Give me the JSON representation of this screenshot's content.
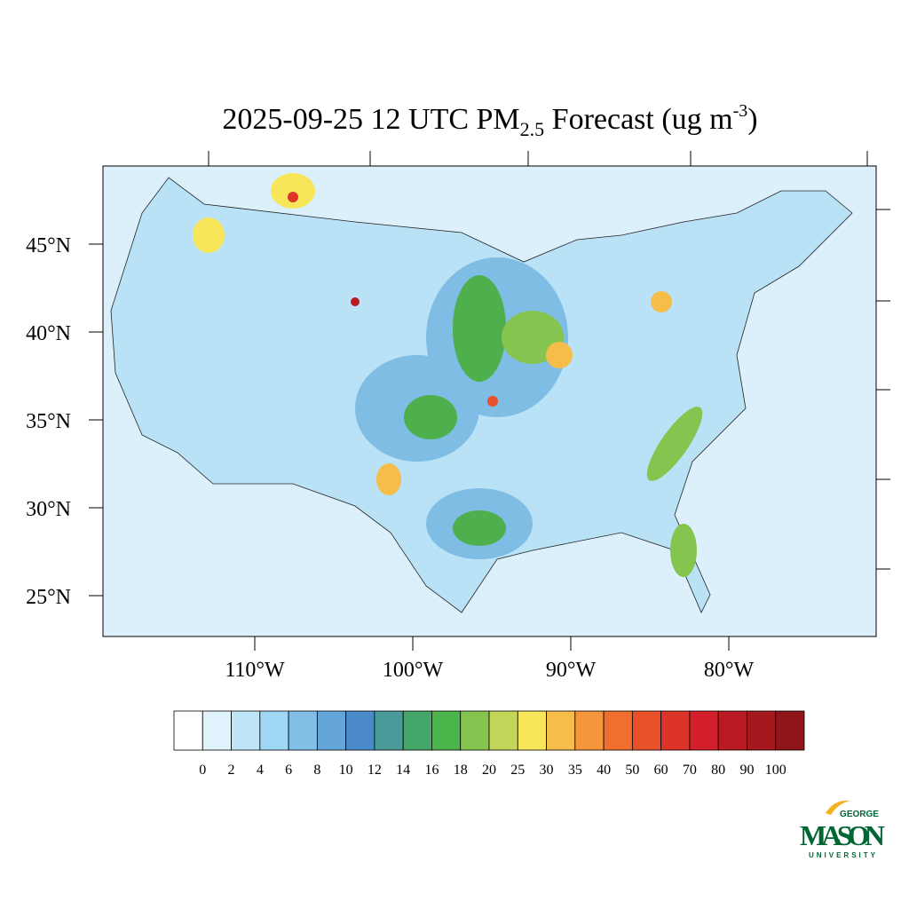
{
  "title_parts": [
    "2025-09-25 12 UTC PM",
    "2.5",
    " Forecast (ug m",
    "-3",
    ")"
  ],
  "lat_ticks": [
    {
      "value": 45,
      "label": "45°N"
    },
    {
      "value": 40,
      "label": "40°N"
    },
    {
      "value": 35,
      "label": "35°N"
    },
    {
      "value": 30,
      "label": "30°N"
    },
    {
      "value": 25,
      "label": "25°N"
    }
  ],
  "lon_ticks": [
    {
      "value": -110,
      "label": "110°W"
    },
    {
      "value": -100,
      "label": "100°W"
    },
    {
      "value": -90,
      "label": "90°W"
    },
    {
      "value": -80,
      "label": "80°W"
    }
  ],
  "colorbar": {
    "levels": [
      0,
      2,
      4,
      6,
      8,
      10,
      12,
      14,
      16,
      18,
      20,
      25,
      30,
      35,
      40,
      50,
      60,
      70,
      80,
      90,
      100
    ],
    "colors": [
      "#ffffff",
      "#e0f3fc",
      "#bfe6f8",
      "#9fd8f4",
      "#82bfe6",
      "#64a6da",
      "#4a8ac8",
      "#4a9a9a",
      "#45a66a",
      "#4bb44a",
      "#85c44e",
      "#c4d65a",
      "#f7e65a",
      "#f7bd4a",
      "#f5963c",
      "#f06e2e",
      "#e8502a",
      "#dc3428",
      "#d21f2a",
      "#b81c22",
      "#a3191e",
      "#8e161a"
    ]
  },
  "logo": {
    "top": "GEORGE",
    "main": "MASON",
    "bottom": "UNIVERSITY"
  }
}
